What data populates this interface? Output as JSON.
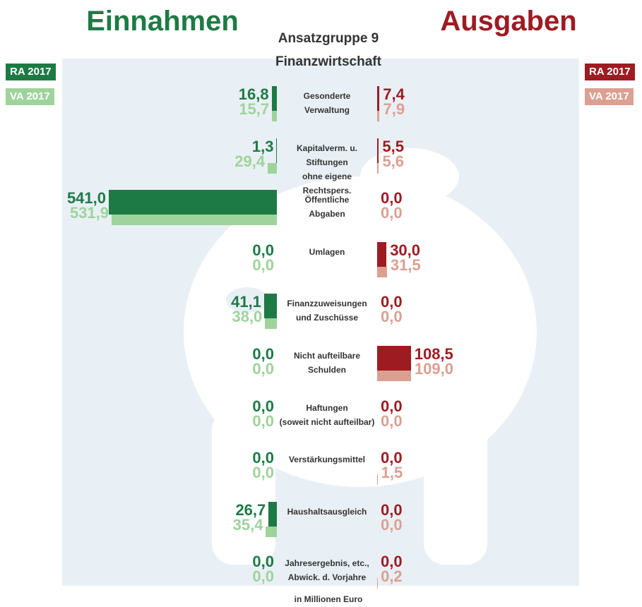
{
  "chart_data": {
    "type": "butterfly",
    "title": "Ansatzgruppe 9",
    "subtitle": "Finanzwirtschaft",
    "note": "in Millionen Euro",
    "categories": [
      "Gesonderte\nVerwaltung",
      "Kapitalverm. u. Stiftungen\nohne eigene Rechtspers.",
      "Öffentliche\nAbgaben",
      "Umlagen",
      "Finanzzuweisungen\nund Zuschüsse",
      "Nicht aufteilbare\nSchulden",
      "Haftungen\n(soweit nicht aufteilbar)",
      "Verstärkungsmittel",
      "Haushaltsausgleich",
      "Jahresergebnis, etc.,\nAbwick. d. Vorjahre"
    ],
    "panels": [
      {
        "title": "Einnahmen",
        "color": "#1e7a45",
        "series": [
          {
            "name": "RA 2017",
            "color": "#1e7a45",
            "values": [
              16.8,
              1.3,
              541.0,
              0,
              41.1,
              0,
              0,
              0,
              26.7,
              0
            ],
            "value_labels": [
              "16,8",
              "1,3",
              "541,0",
              "0,0",
              "41,1",
              "0,0",
              "0,0",
              "0,0",
              "26,7",
              "0,0"
            ]
          },
          {
            "name": "VA 2017",
            "color": "#9fd39c",
            "values": [
              15.7,
              29.4,
              531.9,
              0,
              38.0,
              0,
              0,
              0,
              35.4,
              0
            ],
            "value_labels": [
              "15,7",
              "29,4",
              "531,9",
              "0,0",
              "38,0",
              "0,0",
              "0,0",
              "0,0",
              "35,4",
              "0,0"
            ]
          }
        ]
      },
      {
        "title": "Ausgaben",
        "color": "#9e1b22",
        "series": [
          {
            "name": "RA 2017",
            "color": "#9e1b22",
            "values": [
              7.4,
              5.5,
              0,
              30.0,
              0,
              108.5,
              0,
              0,
              0,
              0
            ],
            "value_labels": [
              "7,4",
              "5,5",
              "0,0",
              "30,0",
              "0,0",
              "108,5",
              "0,0",
              "0,0",
              "0,0",
              "0,0"
            ]
          },
          {
            "name": "VA 2017",
            "color": "#dba092",
            "values": [
              7.9,
              5.6,
              0,
              31.5,
              0,
              109.0,
              0,
              1.5,
              0,
              0.2
            ],
            "value_labels": [
              "7,9",
              "5,6",
              "0,0",
              "31,5",
              "0,0",
              "109,0",
              "0,0",
              "1,5",
              "0,0",
              "0,2"
            ]
          }
        ]
      }
    ]
  }
}
